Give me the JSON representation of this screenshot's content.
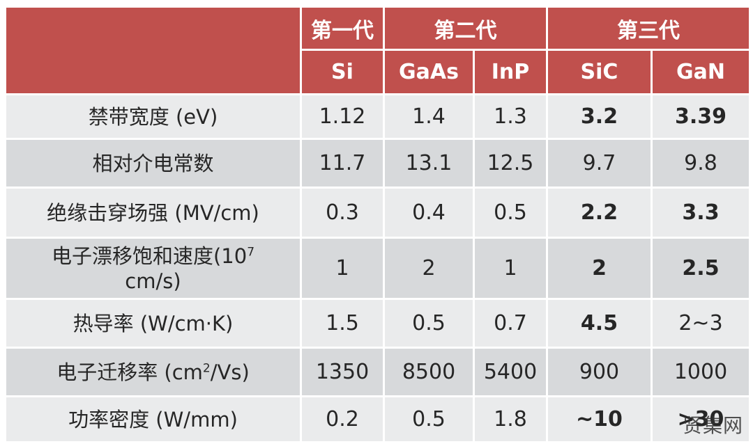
{
  "header": {
    "generations": [
      {
        "label": "第一代"
      },
      {
        "label": "第二代"
      },
      {
        "label": "第三代"
      }
    ],
    "materials": [
      "Si",
      "GaAs",
      "InP",
      "SiC",
      "GaN"
    ]
  },
  "rows": [
    {
      "label": "禁带宽度 (eV)",
      "values": [
        "1.12",
        "1.4",
        "1.3",
        "3.2",
        "3.39"
      ],
      "bold": [
        false,
        false,
        false,
        true,
        true
      ]
    },
    {
      "label": "相对介电常数",
      "values": [
        "11.7",
        "13.1",
        "12.5",
        "9.7",
        "9.8"
      ],
      "bold": [
        false,
        false,
        false,
        false,
        false
      ]
    },
    {
      "label": "绝缘击穿场强 (MV/cm)",
      "values": [
        "0.3",
        "0.4",
        "0.5",
        "2.2",
        "3.3"
      ],
      "bold": [
        false,
        false,
        false,
        true,
        true
      ]
    },
    {
      "label_main": "电子漂移饱和速度(10",
      "label_sup": "7",
      "label_tail": "cm/s)",
      "values": [
        "1",
        "2",
        "1",
        "2",
        "2.5"
      ],
      "bold": [
        false,
        false,
        false,
        true,
        true
      ]
    },
    {
      "label": "热导率 (W/cm·K)",
      "values": [
        "1.5",
        "0.5",
        "0.7",
        "4.5",
        "2~3"
      ],
      "bold": [
        false,
        false,
        false,
        true,
        false
      ]
    },
    {
      "label_main": "电子迁移率 (cm",
      "label_sup": "2",
      "label_tail": "/Vs)",
      "values": [
        "1350",
        "8500",
        "5400",
        "900",
        "1000"
      ],
      "bold": [
        false,
        false,
        false,
        false,
        false
      ]
    },
    {
      "label": "功率密度 (W/mm)",
      "values": [
        "0.2",
        "0.5",
        "1.8",
        "~10",
        ">30"
      ],
      "bold": [
        false,
        false,
        false,
        true,
        true
      ]
    }
  ],
  "watermark": "贤集网",
  "colors": {
    "header_bg": "#c0504d",
    "row_light": "#eaebec",
    "row_dark": "#d7d9db",
    "text": "#262626"
  }
}
